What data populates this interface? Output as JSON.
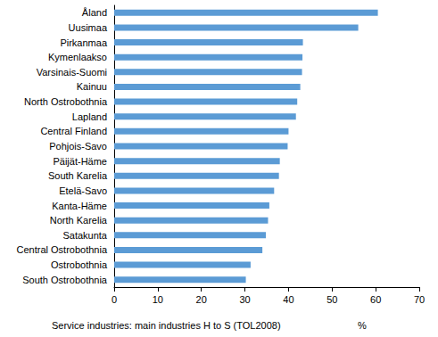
{
  "chart_data": {
    "type": "bar",
    "orientation": "horizontal",
    "categories": [
      "Åland",
      "Uusimaa",
      "Pirkanmaa",
      "Kymenlaakso",
      "Varsinais-Suomi",
      "Kainuu",
      "North Ostrobothnia",
      "Lapland",
      "Central Finland",
      "Pohjois-Savo",
      "Päijät-Häme",
      "South Karelia",
      "Etelä-Savo",
      "Kanta-Häme",
      "North Karelia",
      "Satakunta",
      "Central Ostrobothnia",
      "Ostrobothnia",
      "South Ostrobothnia"
    ],
    "values": [
      60.5,
      56,
      43.3,
      43.2,
      43.1,
      42.7,
      42,
      41.7,
      40,
      39.8,
      38,
      37.8,
      36.7,
      35.6,
      35.3,
      34.8,
      34,
      31.3,
      30.2
    ],
    "color": "#5b9bd5",
    "xlabel": "Service industries: main industries H to S (TOL2008)",
    "annotations": [
      "%"
    ],
    "xlim": [
      0,
      70
    ],
    "xticks": [
      0,
      10,
      20,
      30,
      40,
      50,
      60,
      70
    ],
    "grid": false
  }
}
